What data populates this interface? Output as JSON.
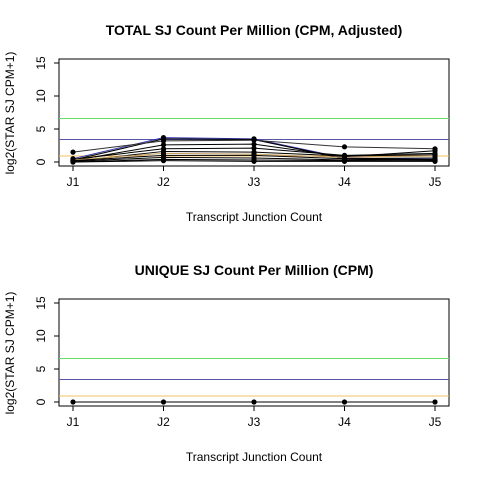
{
  "chart_data": [
    {
      "type": "line",
      "title": "TOTAL SJ Count Per Million (CPM, Adjusted)",
      "xlabel": "Transcript Junction Count",
      "ylabel": "log2(STAR SJ CPM+1)",
      "categories": [
        "J1",
        "J2",
        "J3",
        "J4",
        "J5"
      ],
      "ylim": [
        0,
        15
      ],
      "yticks": [
        "0",
        "5",
        "10",
        "15"
      ],
      "reference_lines": [
        {
          "y": 6.6,
          "color": "#66dd66"
        },
        {
          "y": 3.4,
          "color": "#5555aa"
        },
        {
          "y": 0.9,
          "color": "#f0c060"
        }
      ],
      "series": [
        {
          "values": [
            0.5,
            3.7,
            3.5,
            0.6,
            0.4
          ],
          "color": "#3333aa"
        },
        {
          "values": [
            0.3,
            3.5,
            3.4,
            0.5,
            0.3
          ],
          "color": "#000000"
        },
        {
          "values": [
            1.5,
            3.2,
            3.3,
            2.3,
            2.0
          ],
          "color": "#333333"
        },
        {
          "values": [
            0.2,
            2.6,
            2.7,
            0.8,
            1.7
          ],
          "color": "#000000"
        },
        {
          "values": [
            0.4,
            2.0,
            2.1,
            1.0,
            1.3
          ],
          "color": "#000000"
        },
        {
          "values": [
            0.1,
            1.6,
            1.5,
            0.9,
            1.1
          ],
          "color": "#000000"
        },
        {
          "values": [
            0.3,
            1.3,
            1.2,
            0.7,
            0.9
          ],
          "color": "#c8a060"
        },
        {
          "values": [
            0.2,
            1.0,
            1.0,
            0.5,
            0.6
          ],
          "color": "#000000"
        },
        {
          "values": [
            0.1,
            0.7,
            0.6,
            0.3,
            0.4
          ],
          "color": "#000000"
        },
        {
          "values": [
            0.0,
            0.4,
            0.3,
            0.2,
            0.2
          ],
          "color": "#000000"
        },
        {
          "values": [
            0.0,
            0.2,
            0.1,
            0.1,
            0.1
          ],
          "color": "#000000"
        }
      ]
    },
    {
      "type": "line",
      "title": "UNIQUE SJ Count Per Million (CPM)",
      "xlabel": "Transcript Junction Count",
      "ylabel": "log2(STAR SJ CPM+1)",
      "categories": [
        "J1",
        "J2",
        "J3",
        "J4",
        "J5"
      ],
      "ylim": [
        0,
        15
      ],
      "yticks": [
        "0",
        "5",
        "10",
        "15"
      ],
      "reference_lines": [
        {
          "y": 6.6,
          "color": "#66dd66"
        },
        {
          "y": 3.4,
          "color": "#5555aa"
        },
        {
          "y": 0.9,
          "color": "#f0c060"
        }
      ],
      "series": [
        {
          "values": [
            0,
            0,
            0,
            0,
            0
          ],
          "color": "#000000"
        }
      ]
    }
  ]
}
